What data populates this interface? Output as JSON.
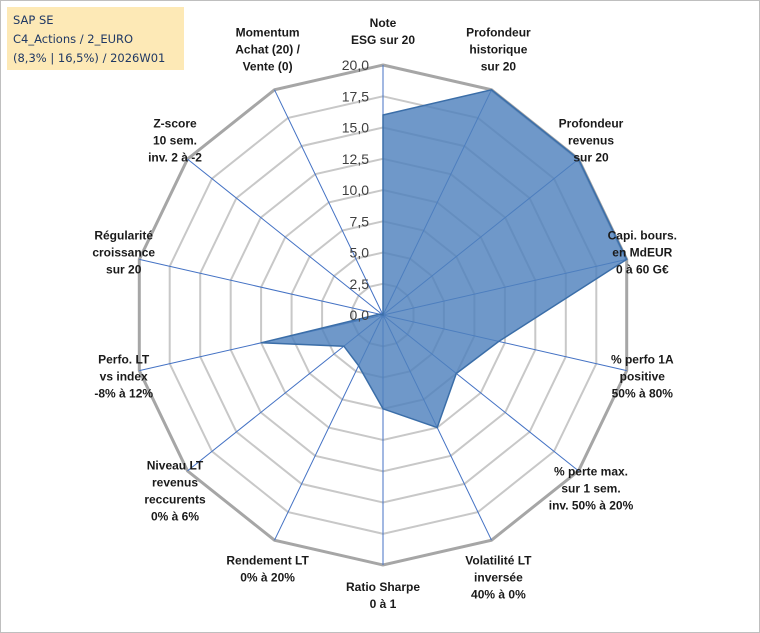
{
  "header": {
    "line1": "SAP SE",
    "line2": "C4_Actions / 2_EURO",
    "line3": "(8,3% | 16,5%) / 2026W01"
  },
  "colors": {
    "fill": "#4f81bd",
    "stroke": "#3b6ea8",
    "grid": "#c8c8c8",
    "outer_ring": "#a6a6a6",
    "axis": "#4472c4",
    "info_bg": "#fde9b6"
  },
  "chart_data": {
    "type": "radar",
    "title": "",
    "rmin": 0,
    "rmax": 20,
    "tick_values": [
      0,
      2.5,
      5,
      7.5,
      10,
      12.5,
      15,
      17.5,
      20
    ],
    "tick_labels": [
      "0,0",
      "2,5",
      "5,0",
      "7,5",
      "10,0",
      "12,5",
      "15,0",
      "17,5",
      "20,0"
    ],
    "categories": [
      [
        "Note",
        "ESG sur 20"
      ],
      [
        "Profondeur",
        "historique",
        "sur 20"
      ],
      [
        "Profondeur",
        "revenus",
        "sur 20"
      ],
      [
        "Capi. bours.",
        "en MdEUR",
        "0 à 60 G€"
      ],
      [
        "% perfo 1A",
        "positive",
        "50% à 80%"
      ],
      [
        "% perte max.",
        "sur 1 sem.",
        "inv. 50% à 20%"
      ],
      [
        "Volatilité LT",
        "inversée",
        "40% à 0%"
      ],
      [
        "Ratio Sharpe",
        "0 à 1"
      ],
      [
        "Rendement LT",
        "0% à 20%"
      ],
      [
        "Niveau LT",
        "revenus",
        "reccurents",
        "0% à 6%"
      ],
      [
        "Perfo. LT",
        "vs index",
        "-8% à 12%"
      ],
      [
        "Régularité",
        "croissance",
        "sur 20"
      ],
      [
        "Z-score",
        "10 sem.",
        "inv. 2 à -2"
      ],
      [
        "Momentum",
        "Achat (20) /",
        "Vente (0)"
      ]
    ],
    "series": [
      {
        "name": "SAP SE",
        "values": [
          16,
          20,
          20,
          20,
          9.5,
          7.5,
          10,
          7.5,
          4.5,
          4,
          10,
          0.3,
          0,
          0
        ]
      }
    ]
  }
}
